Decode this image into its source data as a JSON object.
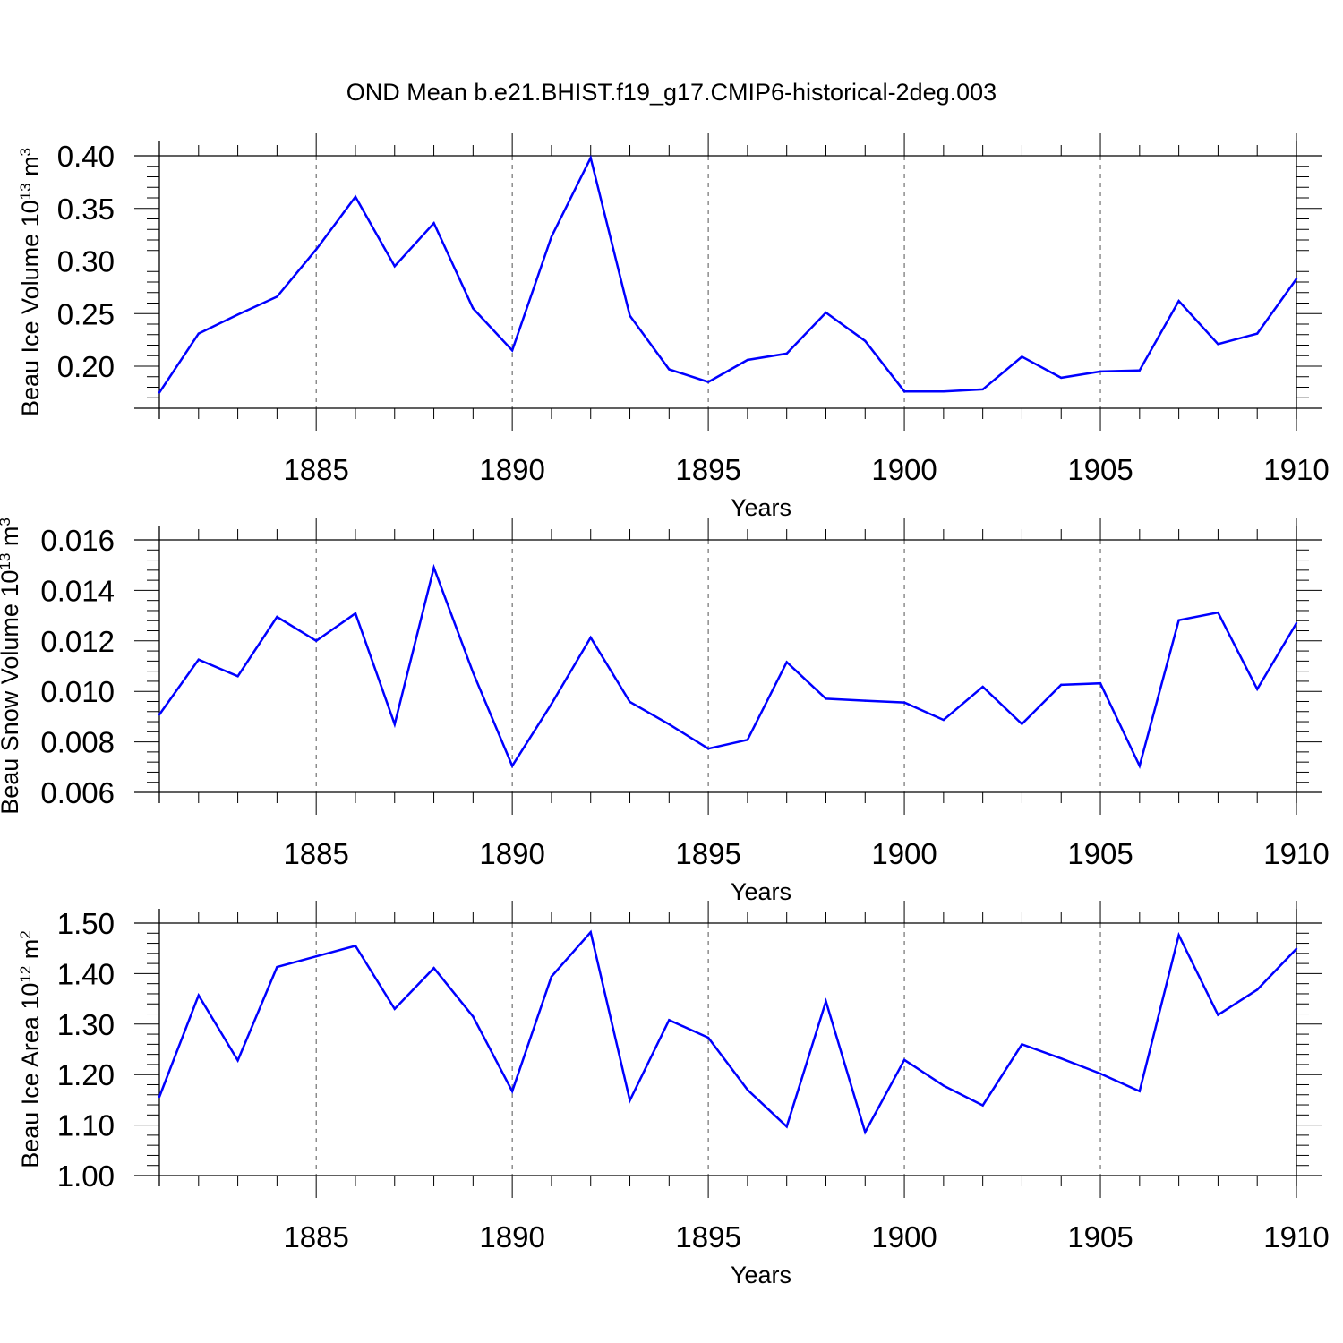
{
  "figure": {
    "title": "OND Mean b.e21.BHIST.f19_g17.CMIP6-historical-2deg.003",
    "line_color": "#0000ff"
  },
  "chart_data": [
    {
      "type": "line",
      "ylabel": {
        "base": "Beau Ice Volume 10",
        "exp": "13",
        "unit": " m",
        "unit_exp": "3"
      },
      "xlabel": "Years",
      "xlim": [
        1881,
        1910
      ],
      "ylim": [
        0.16,
        0.4
      ],
      "yticks": [
        "0.20",
        "0.25",
        "0.30",
        "0.35",
        "0.40"
      ],
      "xticks": [
        "1885",
        "1890",
        "1895",
        "1900",
        "1905",
        "1910"
      ],
      "x": [
        1881,
        1882,
        1883,
        1884,
        1885,
        1886,
        1887,
        1888,
        1889,
        1890,
        1891,
        1892,
        1893,
        1894,
        1895,
        1896,
        1897,
        1898,
        1899,
        1900,
        1901,
        1902,
        1903,
        1904,
        1905,
        1906,
        1907,
        1908,
        1909,
        1910
      ],
      "values": [
        0.175,
        0.231,
        0.249,
        0.266,
        0.311,
        0.361,
        0.295,
        0.336,
        0.255,
        0.215,
        0.323,
        0.398,
        0.248,
        0.197,
        0.185,
        0.206,
        0.212,
        0.251,
        0.224,
        0.176,
        0.176,
        0.178,
        0.209,
        0.189,
        0.195,
        0.196,
        0.262,
        0.221,
        0.231,
        0.283
      ]
    },
    {
      "type": "line",
      "ylabel": {
        "base": "Beau Snow Volume 10",
        "exp": "13",
        "unit": " m",
        "unit_exp": "3"
      },
      "xlabel": "Years",
      "xlim": [
        1881,
        1910
      ],
      "ylim": [
        0.006,
        0.016
      ],
      "yticks": [
        "0.006",
        "0.008",
        "0.010",
        "0.012",
        "0.014",
        "0.016"
      ],
      "xticks": [
        "1885",
        "1890",
        "1895",
        "1900",
        "1905",
        "1910"
      ],
      "x": [
        1881,
        1882,
        1883,
        1884,
        1885,
        1886,
        1887,
        1888,
        1889,
        1890,
        1891,
        1892,
        1893,
        1894,
        1895,
        1896,
        1897,
        1898,
        1899,
        1900,
        1901,
        1902,
        1903,
        1904,
        1905,
        1906,
        1907,
        1908,
        1909,
        1910
      ],
      "values": [
        0.00908,
        0.01126,
        0.0106,
        0.01295,
        0.012,
        0.01309,
        0.0087,
        0.0149,
        0.01075,
        0.00705,
        0.0095,
        0.01213,
        0.00958,
        0.0087,
        0.00773,
        0.00808,
        0.01116,
        0.00971,
        0.00963,
        0.00956,
        0.00887,
        0.01018,
        0.00871,
        0.01026,
        0.01032,
        0.00705,
        0.01282,
        0.01312,
        0.01009,
        0.0127
      ]
    },
    {
      "type": "line",
      "ylabel": {
        "base": "Beau Ice Area 10",
        "exp": "12",
        "unit": " m",
        "unit_exp": "2"
      },
      "xlabel": "Years",
      "xlim": [
        1881,
        1910
      ],
      "ylim": [
        1.0,
        1.5
      ],
      "yticks": [
        "1.00",
        "1.10",
        "1.20",
        "1.30",
        "1.40",
        "1.50"
      ],
      "xticks": [
        "1885",
        "1890",
        "1895",
        "1900",
        "1905",
        "1910"
      ],
      "x": [
        1881,
        1882,
        1883,
        1884,
        1885,
        1886,
        1887,
        1888,
        1889,
        1890,
        1891,
        1892,
        1893,
        1894,
        1895,
        1896,
        1897,
        1898,
        1899,
        1900,
        1901,
        1902,
        1903,
        1904,
        1905,
        1906,
        1907,
        1908,
        1909,
        1910
      ],
      "values": [
        1.156,
        1.357,
        1.228,
        1.413,
        1.434,
        1.455,
        1.33,
        1.411,
        1.315,
        1.167,
        1.394,
        1.482,
        1.149,
        1.308,
        1.273,
        1.17,
        1.097,
        1.345,
        1.086,
        1.229,
        1.178,
        1.139,
        1.26,
        1.232,
        1.202,
        1.167,
        1.476,
        1.318,
        1.368,
        1.449
      ]
    }
  ]
}
